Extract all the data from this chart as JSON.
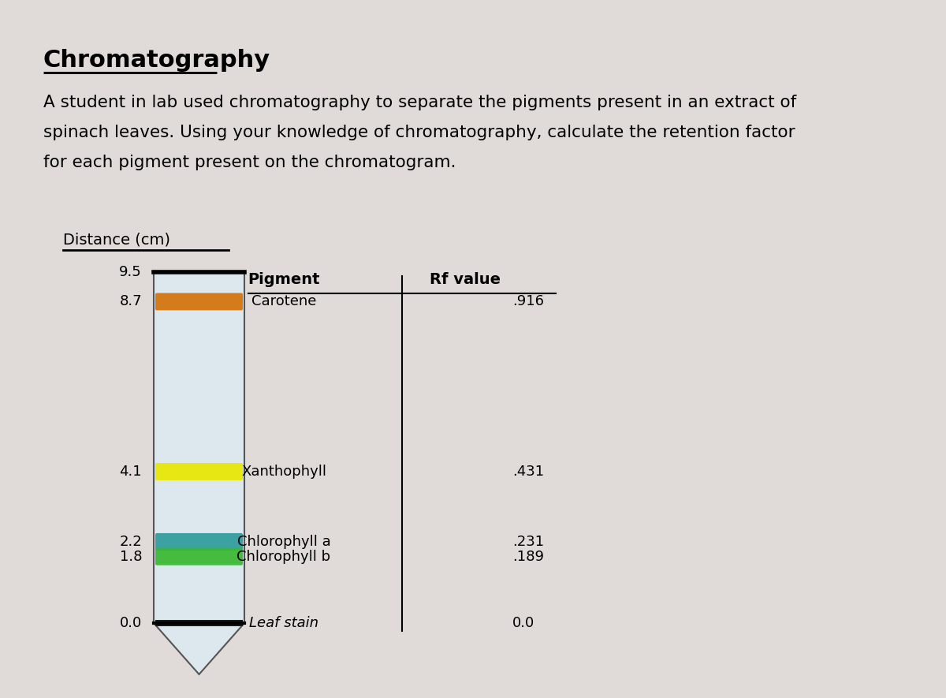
{
  "background_color": "#e0dbd8",
  "title": "Chromatography",
  "description_line1": "A student in lab used chromatography to separate the pigments present in an extract of",
  "description_line2": "spinach leaves. Using your knowledge of chromatography, calculate the retention factor",
  "description_line3": "for each pigment present on the chromatogram.",
  "distance_label": "Distance (cm)",
  "distances": [
    "9.5",
    "8.7",
    "4.1",
    "2.2",
    "1.8",
    "0.0"
  ],
  "band_colors": [
    "#D4730A",
    "#E8E800",
    "#2E9B9B",
    "#38B830",
    "#1a1a1a"
  ],
  "band_distances": [
    8.7,
    4.1,
    2.2,
    1.8,
    0.0
  ],
  "column_bg": "#dde8ee",
  "column_border": "#555555",
  "table_header_pigment": "Pigment",
  "table_header_rf": "Rf value",
  "pigment_data": [
    {
      "name": "Carotene",
      "dist": 8.7,
      "rf": ".916",
      "italic": false
    },
    {
      "name": "Xanthophyll",
      "dist": 4.1,
      "rf": ".431",
      "italic": false
    },
    {
      "name": "Chlorophyll a",
      "dist": 2.2,
      "rf": ".231",
      "italic": false
    },
    {
      "name": "Chlorophyll b",
      "dist": 1.8,
      "rf": ".189",
      "italic": false
    },
    {
      "name": "Leaf stain",
      "dist": 0.0,
      "rf": "0.0",
      "italic": true
    }
  ]
}
